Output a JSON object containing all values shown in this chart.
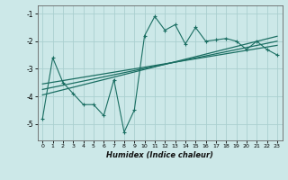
{
  "xlabel": "Humidex (Indice chaleur)",
  "ylabel": "",
  "bg_color": "#cce8e8",
  "grid_color": "#aacfcf",
  "line_color": "#1a6e62",
  "xlim": [
    -0.5,
    23.5
  ],
  "ylim": [
    -5.6,
    -0.7
  ],
  "xticks": [
    0,
    1,
    2,
    3,
    4,
    5,
    6,
    7,
    8,
    9,
    10,
    11,
    12,
    13,
    14,
    15,
    16,
    17,
    18,
    19,
    20,
    21,
    22,
    23
  ],
  "yticks": [
    -1,
    -2,
    -3,
    -4,
    -5
  ],
  "series1_x": [
    0,
    1,
    2,
    3,
    4,
    5,
    6,
    7,
    8,
    9,
    10,
    11,
    12,
    13,
    14,
    15,
    16,
    17,
    18,
    19,
    20,
    21,
    22,
    23
  ],
  "series1_y": [
    -4.8,
    -2.6,
    -3.5,
    -3.9,
    -4.3,
    -4.3,
    -4.7,
    -3.4,
    -5.3,
    -4.5,
    -1.8,
    -1.1,
    -1.6,
    -1.4,
    -2.1,
    -1.5,
    -2.0,
    -1.95,
    -1.9,
    -2.0,
    -2.3,
    -2.0,
    -2.3,
    -2.5
  ],
  "trend1_x": [
    0,
    23
  ],
  "trend1_y": [
    -3.55,
    -2.15
  ],
  "trend2_x": [
    0,
    23
  ],
  "trend2_y": [
    -3.75,
    -2.0
  ],
  "trend3_x": [
    0,
    23
  ],
  "trend3_y": [
    -3.95,
    -1.82
  ]
}
